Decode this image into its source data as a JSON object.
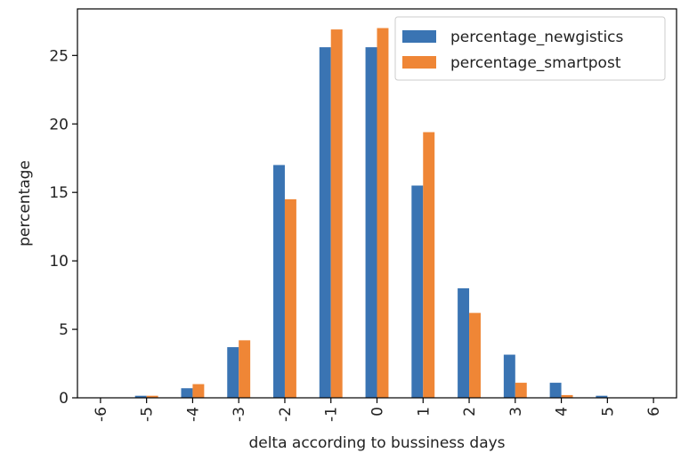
{
  "chart_data": {
    "type": "bar",
    "categories": [
      "-6",
      "-5",
      "-4",
      "-3",
      "-2",
      "-1",
      "0",
      "1",
      "2",
      "3",
      "4",
      "5",
      "6"
    ],
    "series": [
      {
        "name": "percentage_newgistics",
        "color": "#3a74b3",
        "values": [
          0.0,
          0.15,
          0.7,
          3.7,
          17.0,
          25.6,
          25.6,
          15.5,
          8.0,
          3.15,
          1.1,
          0.15,
          0.0
        ]
      },
      {
        "name": "percentage_smartpost",
        "color": "#ef8636",
        "values": [
          0.0,
          0.15,
          1.0,
          4.2,
          14.5,
          26.9,
          27.0,
          19.4,
          6.2,
          1.1,
          0.2,
          0.0,
          0.0
        ]
      }
    ],
    "xlabel": "delta according to bussiness days",
    "ylabel": "percentage",
    "ylim": [
      0,
      28.4
    ],
    "yticks": [
      0,
      5,
      10,
      15,
      20,
      25
    ],
    "grid": false,
    "legend_position": "top-right"
  }
}
